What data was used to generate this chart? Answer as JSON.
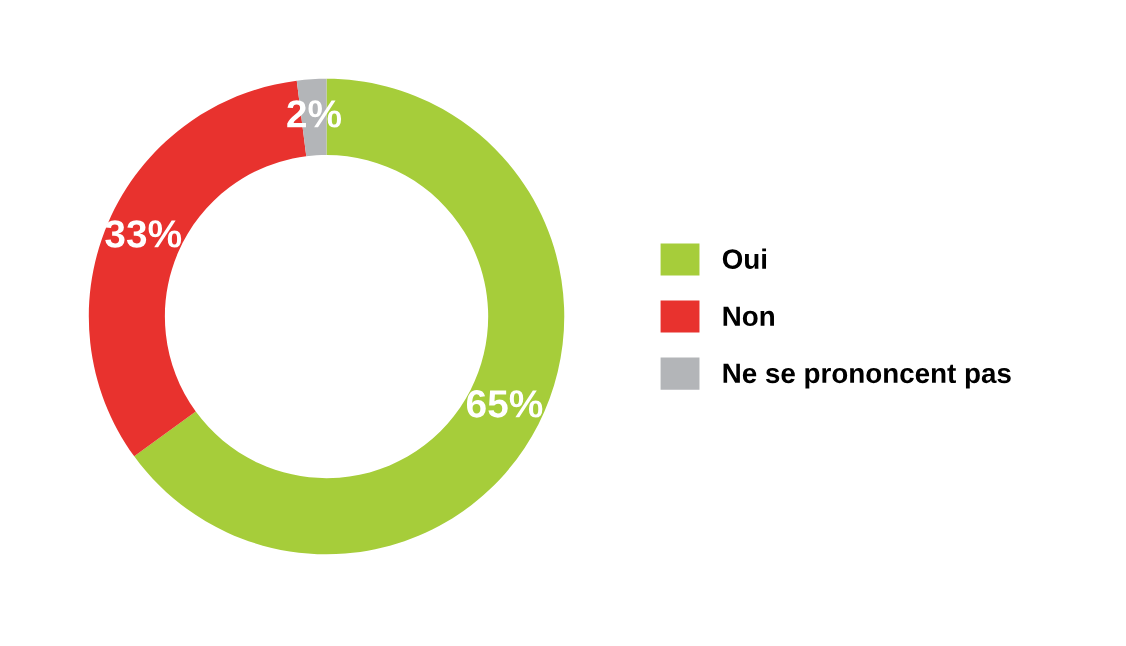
{
  "chart_data": {
    "type": "donut",
    "categories": [
      "Oui",
      "Non",
      "Ne se prononcent pas"
    ],
    "values": [
      65,
      33,
      2
    ],
    "colors": [
      "#a6cd3a",
      "#e8322e",
      "#b3b5b8"
    ],
    "value_labels": [
      "65%",
      "33%",
      "2%"
    ],
    "legend": "right"
  }
}
